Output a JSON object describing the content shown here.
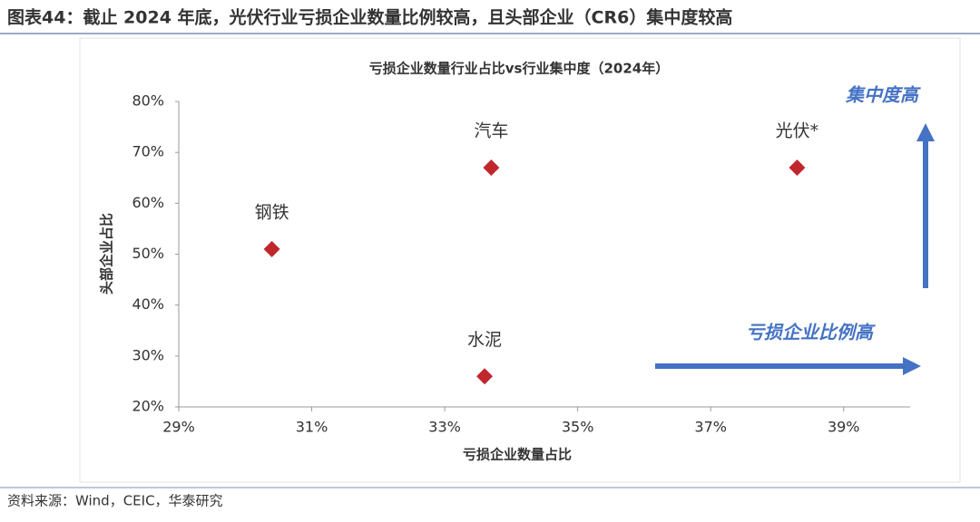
{
  "header": {
    "title": "图表44：截止 2024 年底，光伏行业亏损企业数量比例较高，且头部企业（CR6）集中度较高"
  },
  "chart_data": {
    "type": "scatter",
    "title": "亏损企业数量行业占比vs行业集中度（2024年）",
    "x_label": "亏损企业数量占比",
    "y_label": "头部企业占比",
    "x": [
      30.4,
      33.7,
      38.3,
      33.6
    ],
    "values": [
      51,
      67,
      67,
      26
    ],
    "point_labels": [
      "钢铁",
      "汽车",
      "光伏*",
      "水泥"
    ],
    "color": "#c0272d",
    "xlim": [
      29,
      40
    ],
    "xticks": [
      {
        "value": 29,
        "label": "29%"
      },
      {
        "value": 31,
        "label": "31%"
      },
      {
        "value": 33,
        "label": "33%"
      },
      {
        "value": 35,
        "label": "35%"
      },
      {
        "value": 37,
        "label": "37%"
      },
      {
        "value": 39,
        "label": "39%"
      }
    ],
    "ylim": [
      20,
      80
    ],
    "yticks": [
      {
        "value": 20,
        "label": "20%"
      },
      {
        "value": 30,
        "label": "30%"
      },
      {
        "value": 40,
        "label": "40%"
      },
      {
        "value": 50,
        "label": "50%"
      },
      {
        "value": 60,
        "label": "60%"
      },
      {
        "value": 70,
        "label": "70%"
      },
      {
        "value": 80,
        "label": "80%"
      }
    ],
    "annotations": [
      "集中度高",
      "亏损企业比例高"
    ]
  },
  "source": "资料来源：Wind，CEIC，华泰研究"
}
